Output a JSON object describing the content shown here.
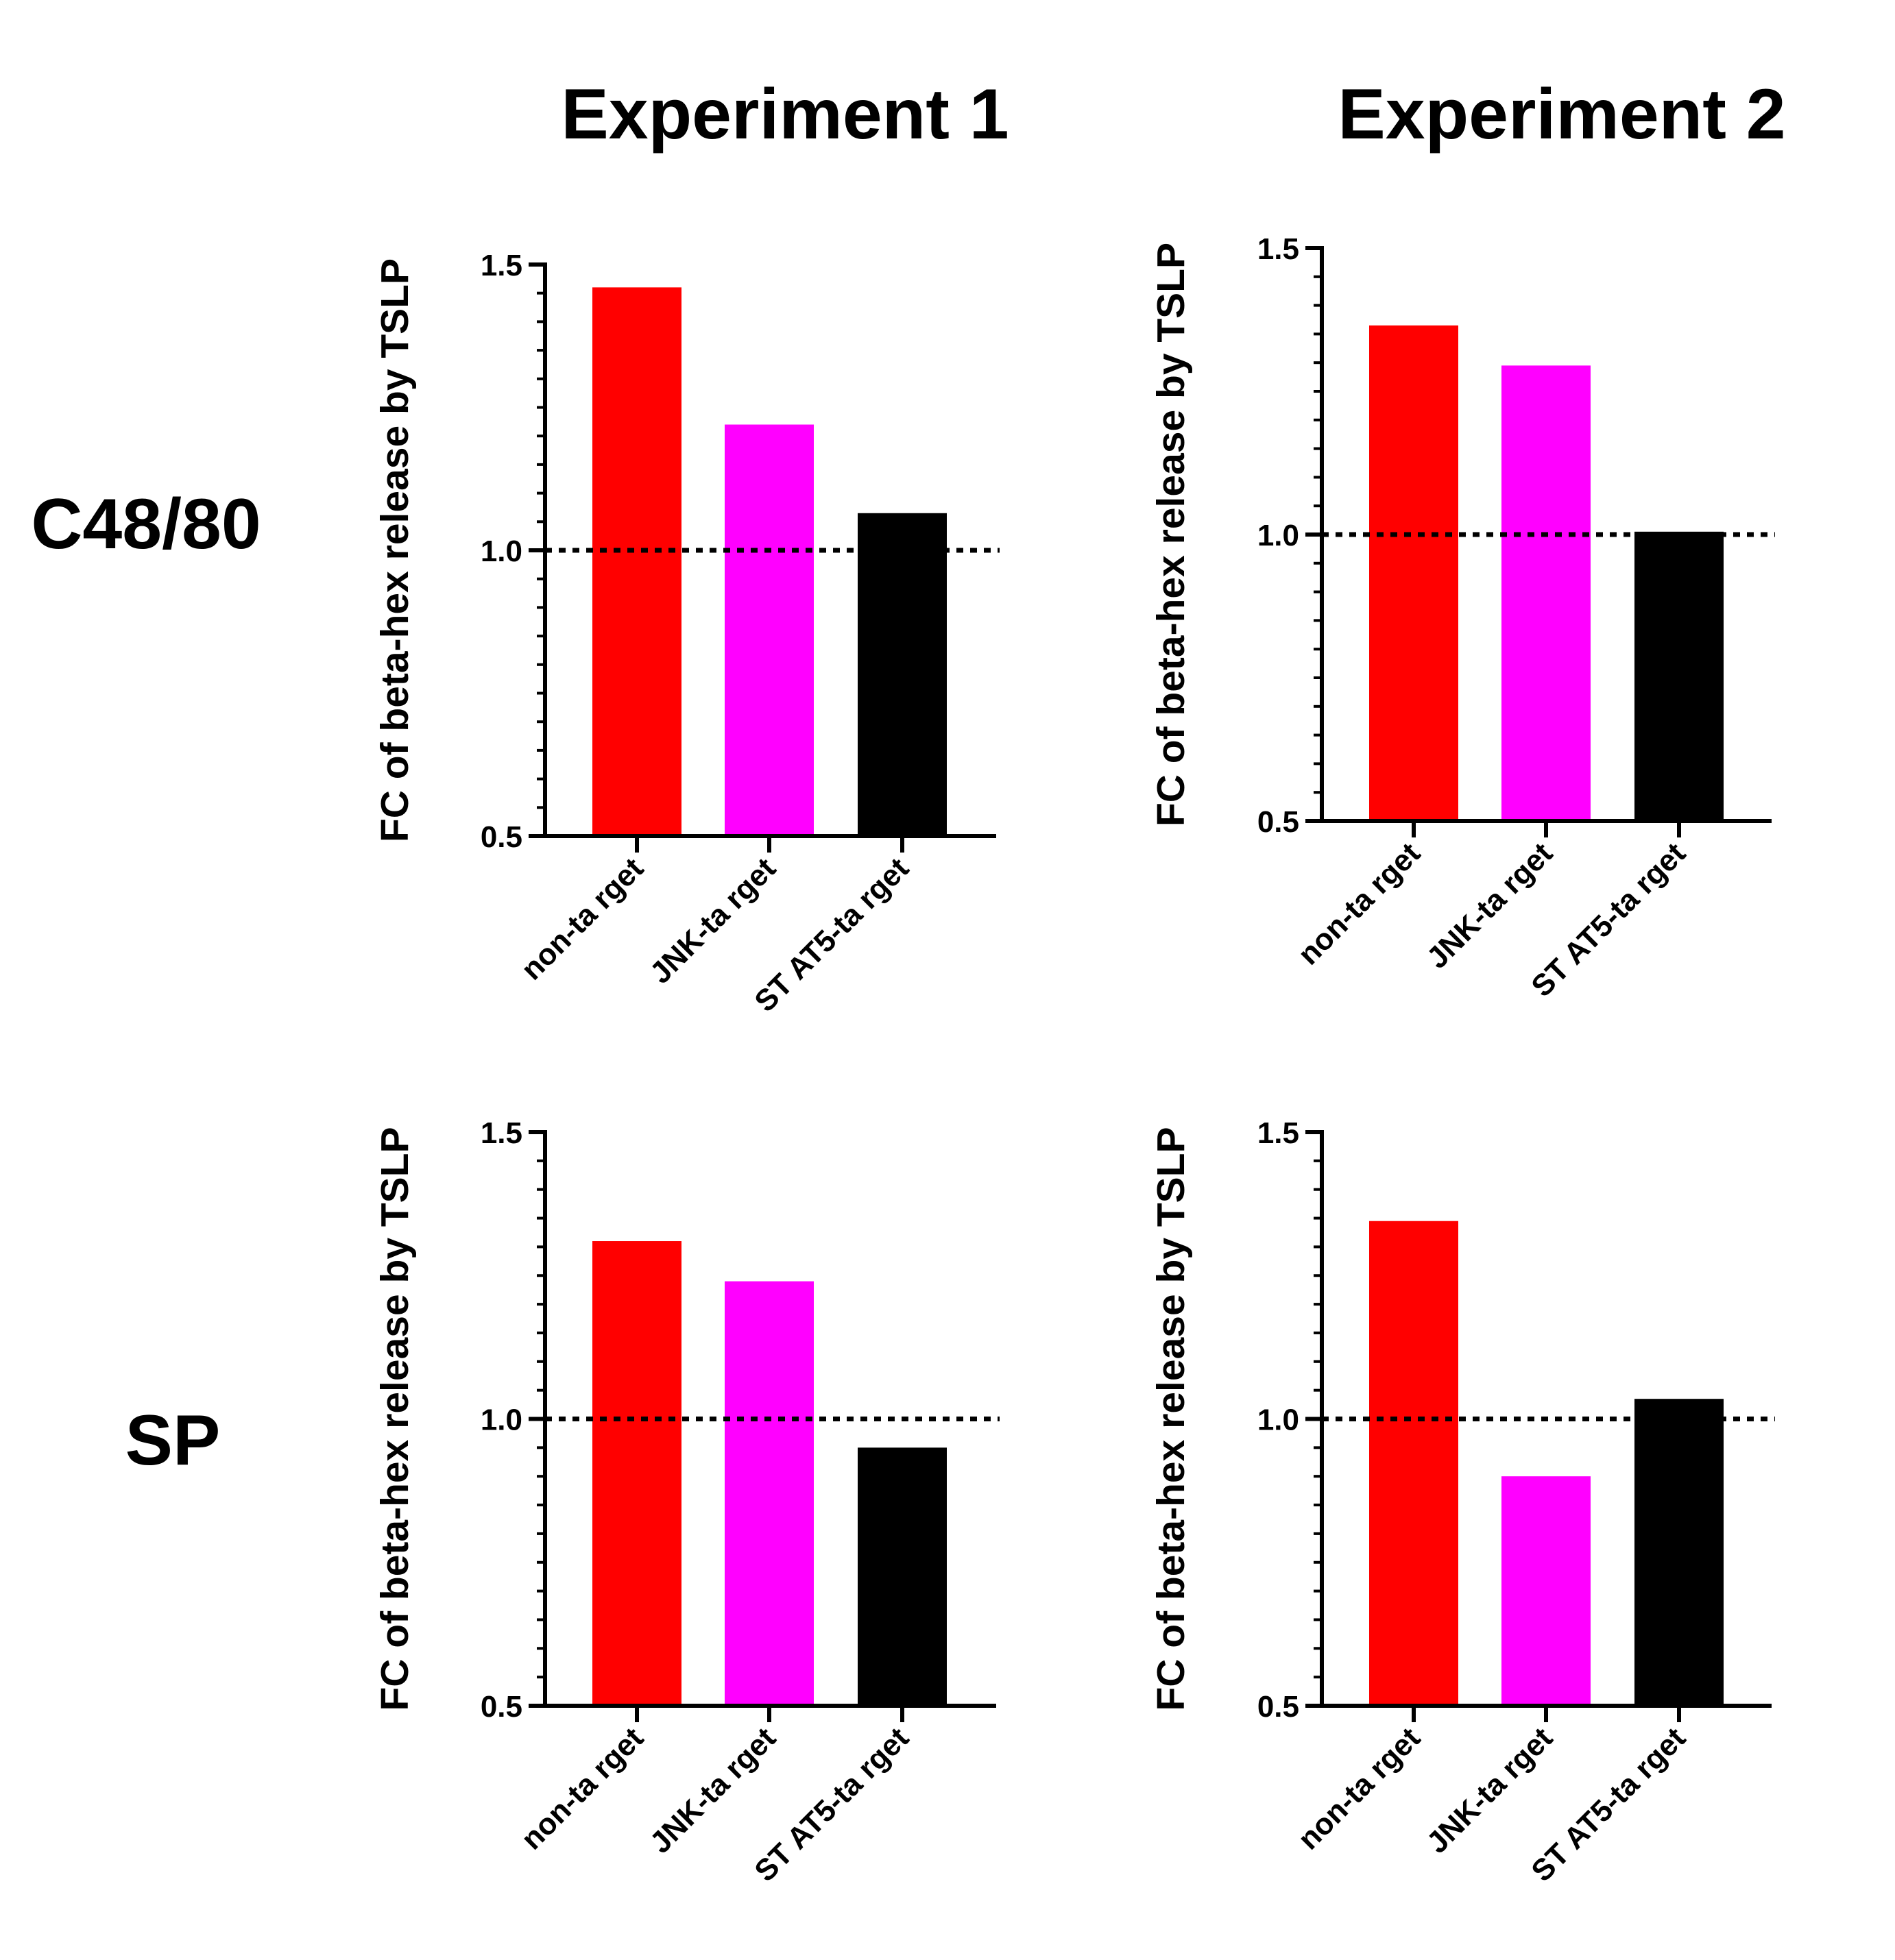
{
  "figure": {
    "column_titles": [
      "Experiment 1",
      "Experiment 2"
    ],
    "row_labels": [
      "C48/80",
      "SP"
    ]
  },
  "colors": {
    "non-target": "#ff0000",
    "jnk-target": "#ff00ff",
    "stat5-target": "#000000",
    "axis": "#000000",
    "reference_line": "#000000"
  },
  "chart_data": [
    {
      "type": "bar",
      "panel": "C48/80 - Experiment 1",
      "categories": [
        "non-ta rget",
        "JNK-ta rget",
        "ST AT5-ta rget"
      ],
      "values": [
        1.46,
        1.22,
        1.065
      ],
      "ylabel": "FC of beta-hex release by TSLP",
      "ylim": [
        0.5,
        1.5
      ],
      "yticks": [
        0.5,
        1.0,
        1.5
      ],
      "ytick_labels": [
        "0.5",
        "1.0",
        "1.5"
      ],
      "minor_ticks_per_interval": 10,
      "reference_line": 1.0,
      "grid": false
    },
    {
      "type": "bar",
      "panel": "C48/80 - Experiment 2",
      "categories": [
        "non-ta rget",
        "JNK-ta rget",
        "ST AT5-ta rget"
      ],
      "values": [
        1.365,
        1.295,
        1.005
      ],
      "ylabel": "FC of beta-hex release by TSLP",
      "ylim": [
        0.5,
        1.5
      ],
      "yticks": [
        0.5,
        1.0,
        1.5
      ],
      "ytick_labels": [
        "0.5",
        "1.0",
        "1.5"
      ],
      "minor_ticks_per_interval": 10,
      "reference_line": 1.0,
      "grid": false
    },
    {
      "type": "bar",
      "panel": "SP - Experiment 1",
      "categories": [
        "non-ta rget",
        "JNK-ta rget",
        "ST AT5-ta rget"
      ],
      "values": [
        1.31,
        1.24,
        0.95
      ],
      "ylabel": "FC of beta-hex release by TSLP",
      "ylim": [
        0.5,
        1.5
      ],
      "yticks": [
        0.5,
        1.0,
        1.5
      ],
      "ytick_labels": [
        "0.5",
        "1.0",
        "1.5"
      ],
      "minor_ticks_per_interval": 10,
      "reference_line": 1.0,
      "grid": false
    },
    {
      "type": "bar",
      "panel": "SP - Experiment 2",
      "categories": [
        "non-ta rget",
        "JNK-ta rget",
        "ST AT5-ta rget"
      ],
      "values": [
        1.345,
        0.9,
        1.035
      ],
      "ylabel": "FC of beta-hex release by TSLP",
      "ylim": [
        0.5,
        1.5
      ],
      "yticks": [
        0.5,
        1.0,
        1.5
      ],
      "ytick_labels": [
        "0.5",
        "1.0",
        "1.5"
      ],
      "minor_ticks_per_interval": 10,
      "reference_line": 1.0,
      "grid": false
    }
  ]
}
